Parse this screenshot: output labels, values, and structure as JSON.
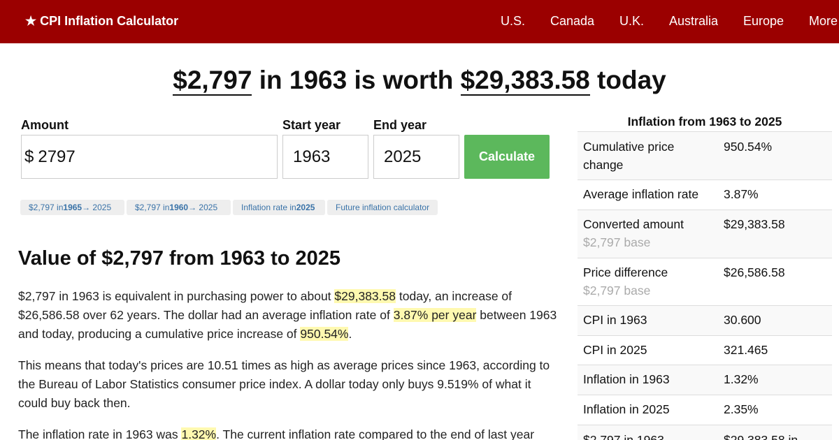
{
  "header": {
    "brand": "★ CPI Inflation Calculator",
    "nav": [
      "U.S.",
      "Canada",
      "U.K.",
      "Australia",
      "Europe",
      "More"
    ]
  },
  "headline": {
    "amount": "$2,797",
    "mid": " in 1963 is worth ",
    "result": "$29,383.58",
    "tail": " today"
  },
  "form": {
    "amount_label": "Amount",
    "currency": "$",
    "amount_value": "2797",
    "start_label": "Start year",
    "start_value": "1963",
    "end_label": "End year",
    "end_value": "2025",
    "calculate_label": "Calculate"
  },
  "quick_links": [
    {
      "pre": "$2,797 in ",
      "bold": "1965",
      "post": " → 2025"
    },
    {
      "pre": "$2,797 in ",
      "bold": "1960",
      "post": " → 2025"
    },
    {
      "pre": "Inflation rate in ",
      "bold": "2025",
      "post": ""
    },
    {
      "pre": "Future inflation calculator",
      "bold": "",
      "post": ""
    }
  ],
  "article": {
    "title": "Value of $2,797 from 1963 to 2025",
    "p1": {
      "a": "$2,797 in 1963 is equivalent in purchasing power to about ",
      "h1": "$29,383.58",
      "b": " today, an increase of $26,586.58 over 62 years. The dollar had an average inflation rate of ",
      "h2": "3.87% per year",
      "c": " between 1963 and today, producing a cumulative price increase of ",
      "h3": "950.54%",
      "d": "."
    },
    "p2": "This means that today's prices are 10.51 times as high as average prices since 1963, according to the Bureau of Labor Statistics consumer price index. A dollar today only buys 9.519% of what it could buy back then.",
    "p3": {
      "a": "The inflation rate in 1963 was ",
      "h": "1.32%",
      "b": ". The current inflation rate compared to the end of last year"
    }
  },
  "sidebar": {
    "title": "Inflation from 1963 to 2025",
    "rows": [
      {
        "key": "Cumulative price change",
        "value": "950.54%",
        "sub": ""
      },
      {
        "key": "Average inflation rate",
        "value": "3.87%",
        "sub": ""
      },
      {
        "key": "Converted amount",
        "value": "$29,383.58",
        "sub": "$2,797 base"
      },
      {
        "key": "Price difference",
        "value": "$26,586.58",
        "sub": "$2,797 base"
      },
      {
        "key": "CPI in 1963",
        "value": "30.600",
        "sub": ""
      },
      {
        "key": "CPI in 2025",
        "value": "321.465",
        "sub": ""
      },
      {
        "key": "Inflation in 1963",
        "value": "1.32%",
        "sub": ""
      },
      {
        "key": "Inflation in 2025",
        "value": "2.35%",
        "sub": ""
      },
      {
        "key": "$2,797 in 1963",
        "value": "$29,383.58 in",
        "sub": ""
      }
    ]
  },
  "colors": {
    "header_bg": "#9b0000",
    "button_bg": "#5cb85c",
    "highlight": "#fff9b0",
    "link": "#3a73a8"
  }
}
